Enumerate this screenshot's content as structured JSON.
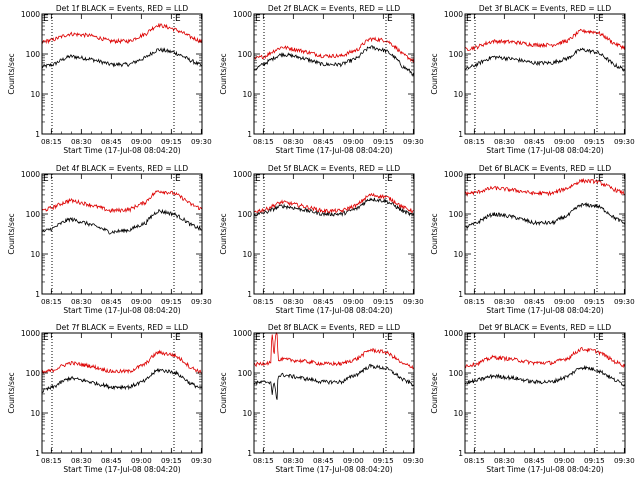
{
  "figure": {
    "xlabel": "Start Time (17-Jul-08 08:04:20)",
    "ylabel": "Counts/sec",
    "y_tick_labels": [
      "1",
      "10",
      "100",
      "1000"
    ],
    "x_tick_labels": [
      "08:15",
      "08:30",
      "08:45",
      "09:00",
      "09:15",
      "09:30"
    ],
    "colors": {
      "events": "#000000",
      "lld": "#dd0000",
      "axes": "#000000",
      "background": "#ffffff"
    }
  },
  "chart_data": [
    {
      "type": "line",
      "title": "Det 1f BLACK = Events, RED = LLD",
      "xlabel": "Start Time (17-Jul-08 08:04:20)",
      "ylabel": "Counts/sec",
      "x_ticks": [
        "08:15",
        "08:30",
        "08:45",
        "09:00",
        "09:15",
        "09:30"
      ],
      "y_ticks": [
        "1",
        "10",
        "100",
        "1000"
      ],
      "yscale": "log",
      "ylim": [
        1,
        1000
      ],
      "x_start_min": 6,
      "x_end_min": 86,
      "series": [
        {
          "name": "BLACK = Events",
          "color": "#000000",
          "x_min": [
            6,
            12,
            20,
            30,
            40,
            50,
            58,
            64,
            72,
            80,
            86
          ],
          "values": [
            48,
            55,
            88,
            75,
            55,
            55,
            82,
            130,
            110,
            70,
            50
          ]
        },
        {
          "name": "RED = LLD",
          "color": "#dd0000",
          "x_min": [
            6,
            12,
            20,
            30,
            40,
            50,
            58,
            64,
            72,
            80,
            86
          ],
          "values": [
            200,
            230,
            320,
            290,
            210,
            210,
            320,
            540,
            420,
            270,
            200
          ]
        }
      ],
      "markers": [
        {
          "label": "",
          "x_min": 11
        },
        {
          "label": "E",
          "x_min": 72
        }
      ]
    },
    {
      "type": "line",
      "title": "Det 2f BLACK = Events, RED = LLD",
      "xlabel": "Start Time (17-Jul-08 08:04:20)",
      "ylabel": "Counts/sec",
      "x_ticks": [
        "08:15",
        "08:30",
        "08:45",
        "09:00",
        "09:15",
        "09:30"
      ],
      "y_ticks": [
        "1",
        "10",
        "100",
        "1000"
      ],
      "yscale": "log",
      "ylim": [
        1,
        1000
      ],
      "x_start_min": 6,
      "x_end_min": 86,
      "series": [
        {
          "name": "BLACK = Events",
          "color": "#000000",
          "x_min": [
            6,
            12,
            20,
            30,
            40,
            50,
            58,
            64,
            72,
            80,
            86
          ],
          "values": [
            40,
            60,
            100,
            80,
            55,
            55,
            80,
            150,
            120,
            50,
            30
          ]
        },
        {
          "name": "RED = LLD",
          "color": "#dd0000",
          "x_min": [
            6,
            12,
            20,
            30,
            40,
            50,
            58,
            64,
            72,
            80,
            86
          ],
          "values": [
            75,
            90,
            150,
            120,
            90,
            90,
            130,
            240,
            220,
            100,
            65
          ]
        }
      ],
      "markers": [
        {
          "label": "",
          "x_min": 11
        },
        {
          "label": "E",
          "x_min": 72
        }
      ]
    },
    {
      "type": "line",
      "title": "Det 3f BLACK = Events, RED = LLD",
      "xlabel": "Start Time (17-Jul-08 08:04:20)",
      "ylabel": "Counts/sec",
      "x_ticks": [
        "08:15",
        "08:30",
        "08:45",
        "09:00",
        "09:15",
        "09:30"
      ],
      "y_ticks": [
        "1",
        "10",
        "100",
        "1000"
      ],
      "yscale": "log",
      "ylim": [
        1,
        1000
      ],
      "x_start_min": 6,
      "x_end_min": 86,
      "series": [
        {
          "name": "BLACK = Events",
          "color": "#000000",
          "x_min": [
            6,
            12,
            20,
            30,
            40,
            50,
            58,
            64,
            72,
            80,
            86
          ],
          "values": [
            40,
            55,
            85,
            75,
            60,
            60,
            80,
            130,
            110,
            55,
            40
          ]
        },
        {
          "name": "RED = LLD",
          "color": "#dd0000",
          "x_min": [
            6,
            12,
            20,
            30,
            40,
            50,
            58,
            64,
            72,
            80,
            86
          ],
          "values": [
            130,
            150,
            210,
            200,
            170,
            170,
            220,
            380,
            350,
            190,
            140
          ]
        }
      ],
      "markers": [
        {
          "label": "",
          "x_min": 11
        },
        {
          "label": "E",
          "x_min": 72
        }
      ]
    },
    {
      "type": "line",
      "title": "Det 4f BLACK = Events, RED = LLD",
      "xlabel": "Start Time (17-Jul-08 08:04:20)",
      "ylabel": "Counts/sec",
      "x_ticks": [
        "08:15",
        "08:30",
        "08:45",
        "09:00",
        "09:15",
        "09:30"
      ],
      "y_ticks": [
        "1",
        "10",
        "100",
        "1000"
      ],
      "yscale": "log",
      "ylim": [
        1,
        1000
      ],
      "x_start_min": 6,
      "x_end_min": 86,
      "series": [
        {
          "name": "BLACK = Events",
          "color": "#000000",
          "x_min": [
            6,
            12,
            20,
            30,
            40,
            50,
            58,
            64,
            72,
            80,
            86
          ],
          "values": [
            35,
            45,
            75,
            55,
            35,
            40,
            60,
            120,
            100,
            55,
            40
          ]
        },
        {
          "name": "RED = LLD",
          "color": "#dd0000",
          "x_min": [
            6,
            12,
            20,
            30,
            40,
            50,
            58,
            64,
            72,
            80,
            86
          ],
          "values": [
            120,
            150,
            220,
            170,
            120,
            130,
            200,
            380,
            330,
            180,
            130
          ]
        }
      ],
      "markers": [
        {
          "label": "",
          "x_min": 11
        },
        {
          "label": "E",
          "x_min": 72
        }
      ]
    },
    {
      "type": "line",
      "title": "Det 5f BLACK = Events, RED = LLD",
      "xlabel": "Start Time (17-Jul-08 08:04:20)",
      "ylabel": "Counts/sec",
      "x_ticks": [
        "08:15",
        "08:30",
        "08:45",
        "09:00",
        "09:15",
        "09:30"
      ],
      "y_ticks": [
        "1",
        "10",
        "100",
        "1000"
      ],
      "yscale": "log",
      "ylim": [
        1,
        1000
      ],
      "x_start_min": 6,
      "x_end_min": 86,
      "series": [
        {
          "name": "BLACK = Events",
          "color": "#000000",
          "x_min": [
            6,
            12,
            20,
            30,
            40,
            50,
            58,
            64,
            72,
            80,
            86
          ],
          "values": [
            95,
            110,
            160,
            130,
            100,
            100,
            140,
            240,
            210,
            120,
            90
          ]
        },
        {
          "name": "RED = LLD",
          "color": "#dd0000",
          "x_min": [
            6,
            12,
            20,
            30,
            40,
            50,
            58,
            64,
            72,
            80,
            86
          ],
          "values": [
            115,
            130,
            200,
            160,
            120,
            120,
            170,
            300,
            270,
            150,
            115
          ]
        }
      ],
      "markers": [
        {
          "label": "",
          "x_min": 11
        },
        {
          "label": "E",
          "x_min": 72
        }
      ]
    },
    {
      "type": "line",
      "title": "Det 6f BLACK = Events, RED = LLD",
      "xlabel": "Start Time (17-Jul-08 08:04:20)",
      "ylabel": "Counts/sec",
      "x_ticks": [
        "08:15",
        "08:30",
        "08:45",
        "09:00",
        "09:15",
        "09:30"
      ],
      "y_ticks": [
        "1",
        "10",
        "100",
        "1000"
      ],
      "yscale": "log",
      "ylim": [
        1,
        1000
      ],
      "x_start_min": 6,
      "x_end_min": 86,
      "series": [
        {
          "name": "BLACK = Events",
          "color": "#000000",
          "x_min": [
            6,
            12,
            20,
            30,
            40,
            50,
            58,
            64,
            72,
            80,
            86
          ],
          "values": [
            45,
            60,
            100,
            85,
            60,
            60,
            95,
            170,
            160,
            85,
            55
          ]
        },
        {
          "name": "RED = LLD",
          "color": "#dd0000",
          "x_min": [
            6,
            12,
            20,
            30,
            40,
            50,
            58,
            64,
            72,
            80,
            86
          ],
          "values": [
            320,
            350,
            450,
            400,
            330,
            330,
            460,
            680,
            650,
            420,
            320
          ]
        }
      ],
      "markers": [
        {
          "label": "",
          "x_min": 11
        },
        {
          "label": "E",
          "x_min": 72
        }
      ]
    },
    {
      "type": "line",
      "title": "Det 7f BLACK = Events, RED = LLD",
      "xlabel": "Start Time (17-Jul-08 08:04:20)",
      "ylabel": "Counts/sec",
      "x_ticks": [
        "08:15",
        "08:30",
        "08:45",
        "09:00",
        "09:15",
        "09:30"
      ],
      "y_ticks": [
        "1",
        "10",
        "100",
        "1000"
      ],
      "yscale": "log",
      "ylim": [
        1,
        1000
      ],
      "x_start_min": 6,
      "x_end_min": 86,
      "series": [
        {
          "name": "BLACK = Events",
          "color": "#000000",
          "x_min": [
            6,
            12,
            20,
            30,
            40,
            50,
            58,
            64,
            72,
            80,
            86
          ],
          "values": [
            35,
            45,
            75,
            60,
            45,
            45,
            65,
            120,
            105,
            55,
            40
          ]
        },
        {
          "name": "RED = LLD",
          "color": "#dd0000",
          "x_min": [
            6,
            12,
            20,
            30,
            40,
            50,
            58,
            64,
            72,
            80,
            86
          ],
          "values": [
            100,
            120,
            180,
            150,
            110,
            110,
            170,
            330,
            280,
            140,
            100
          ]
        }
      ],
      "markers": [
        {
          "label": "",
          "x_min": 11
        },
        {
          "label": "E",
          "x_min": 72
        }
      ]
    },
    {
      "type": "line",
      "title": "Det 8f BLACK = Events, RED = LLD",
      "xlabel": "Start Time (17-Jul-08 08:04:20)",
      "ylabel": "Counts/sec",
      "x_ticks": [
        "08:15",
        "08:30",
        "08:45",
        "09:00",
        "09:15",
        "09:30"
      ],
      "y_ticks": [
        "1",
        "10",
        "100",
        "1000"
      ],
      "yscale": "log",
      "ylim": [
        1,
        1000
      ],
      "x_start_min": 6,
      "x_end_min": 86,
      "series": [
        {
          "name": "BLACK = Events",
          "color": "#000000",
          "x_min": [
            6,
            12,
            14.5,
            15,
            16,
            17.5,
            18,
            20,
            30,
            40,
            50,
            58,
            64,
            72,
            80,
            86
          ],
          "values": [
            55,
            60,
            60,
            25,
            60,
            15,
            80,
            90,
            75,
            60,
            60,
            95,
            150,
            130,
            70,
            50
          ]
        },
        {
          "name": "RED = LLD",
          "color": "#dd0000",
          "x_min": [
            6,
            12,
            14.5,
            15,
            16,
            17,
            17.5,
            18,
            20,
            30,
            40,
            50,
            58,
            64,
            72,
            80,
            86
          ],
          "values": [
            160,
            180,
            180,
            1000,
            180,
            1000,
            1000,
            200,
            220,
            200,
            170,
            170,
            230,
            380,
            330,
            170,
            140
          ]
        }
      ],
      "markers": [
        {
          "label": "",
          "x_min": 11
        },
        {
          "label": "E",
          "x_min": 72
        }
      ]
    },
    {
      "type": "line",
      "title": "Det 9f BLACK = Events, RED = LLD",
      "xlabel": "Start Time (17-Jul-08 08:04:20)",
      "ylabel": "Counts/sec",
      "x_ticks": [
        "08:15",
        "08:30",
        "08:45",
        "09:00",
        "09:15",
        "09:30"
      ],
      "y_ticks": [
        "1",
        "10",
        "100",
        "1000"
      ],
      "yscale": "log",
      "ylim": [
        1,
        1000
      ],
      "x_start_min": 6,
      "x_end_min": 86,
      "series": [
        {
          "name": "BLACK = Events",
          "color": "#000000",
          "x_min": [
            6,
            12,
            20,
            30,
            40,
            50,
            58,
            64,
            72,
            80,
            86
          ],
          "values": [
            55,
            65,
            85,
            75,
            60,
            60,
            85,
            140,
            120,
            70,
            50
          ]
        },
        {
          "name": "RED = LLD",
          "color": "#dd0000",
          "x_min": [
            6,
            12,
            20,
            30,
            40,
            50,
            58,
            64,
            72,
            80,
            86
          ],
          "values": [
            150,
            170,
            250,
            220,
            180,
            180,
            240,
            400,
            350,
            200,
            150
          ]
        }
      ],
      "markers": [
        {
          "label": "",
          "x_min": 11
        },
        {
          "label": "E",
          "x_min": 72
        }
      ]
    }
  ]
}
